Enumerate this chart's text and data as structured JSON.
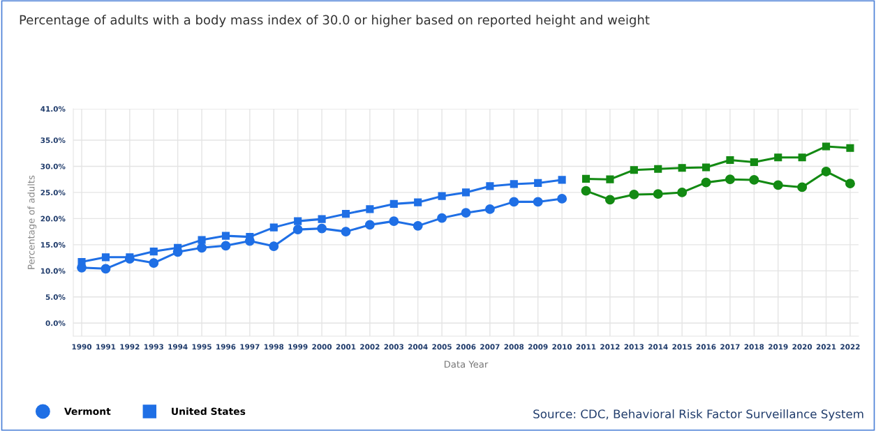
{
  "chart_data": {
    "type": "line",
    "title": "Percentage of adults with a body mass index of 30.0 or higher based on reported height and weight",
    "xlabel": "Data Year",
    "ylabel": "Percentage of adults",
    "categories": [
      "1990",
      "1991",
      "1992",
      "1993",
      "1994",
      "1995",
      "1996",
      "1997",
      "1998",
      "1999",
      "2000",
      "2001",
      "2002",
      "2003",
      "2004",
      "2005",
      "2006",
      "2007",
      "2008",
      "2009",
      "2010",
      "2011",
      "2012",
      "2013",
      "2014",
      "2015",
      "2016",
      "2017",
      "2018",
      "2019",
      "2020",
      "2021",
      "2022"
    ],
    "series": [
      {
        "name": "Vermont",
        "marker": "circle",
        "color": "#1f6fe5",
        "values": [
          10.6,
          10.4,
          12.3,
          11.5,
          13.6,
          14.4,
          14.8,
          15.7,
          14.7,
          17.9,
          18.1,
          17.5,
          18.8,
          19.5,
          18.6,
          20.1,
          21.1,
          21.8,
          23.2,
          23.2,
          23.8,
          null,
          null,
          null,
          null,
          null,
          null,
          null,
          null,
          null,
          null,
          null,
          null
        ]
      },
      {
        "name": "United States",
        "marker": "square",
        "color": "#1f6fe5",
        "values": [
          11.7,
          12.6,
          12.6,
          13.7,
          14.4,
          15.9,
          16.7,
          16.5,
          18.3,
          19.5,
          19.9,
          20.9,
          21.8,
          22.8,
          23.1,
          24.3,
          25.0,
          26.2,
          26.6,
          26.8,
          27.4,
          null,
          null,
          null,
          null,
          null,
          null,
          null,
          null,
          null,
          null,
          null,
          null
        ]
      },
      {
        "marker": "circle",
        "color": "#138a13",
        "values": [
          null,
          null,
          null,
          null,
          null,
          null,
          null,
          null,
          null,
          null,
          null,
          null,
          null,
          null,
          null,
          null,
          null,
          null,
          null,
          null,
          null,
          25.3,
          23.6,
          24.6,
          24.7,
          25.0,
          26.9,
          27.5,
          27.4,
          26.4,
          26.0,
          29.0,
          26.7
        ]
      },
      {
        "marker": "square",
        "color": "#138a13",
        "values": [
          null,
          null,
          null,
          null,
          null,
          null,
          null,
          null,
          null,
          null,
          null,
          null,
          null,
          null,
          null,
          null,
          null,
          null,
          null,
          null,
          null,
          27.6,
          27.5,
          29.3,
          29.5,
          29.7,
          29.8,
          31.2,
          30.8,
          31.7,
          31.7,
          33.8,
          33.5
        ]
      }
    ],
    "ylim": [
      -2.5,
      41
    ],
    "yticks": [
      {
        "value": 0,
        "label": "0.0%"
      },
      {
        "value": 5,
        "label": "5.0%"
      },
      {
        "value": 10,
        "label": "10.0%"
      },
      {
        "value": 15,
        "label": "15.0%"
      },
      {
        "value": 20,
        "label": "20.0%"
      },
      {
        "value": 25,
        "label": "25.0%"
      },
      {
        "value": 30,
        "label": "30.0%"
      },
      {
        "value": 35,
        "label": "35.0%"
      },
      {
        "value": 41,
        "label": "41.0%"
      }
    ],
    "grid": true,
    "legend": "bottom left",
    "line_style": "solid",
    "annotations": [
      "Source: CDC, Behavioral Risk Factor Surveillance System"
    ]
  }
}
